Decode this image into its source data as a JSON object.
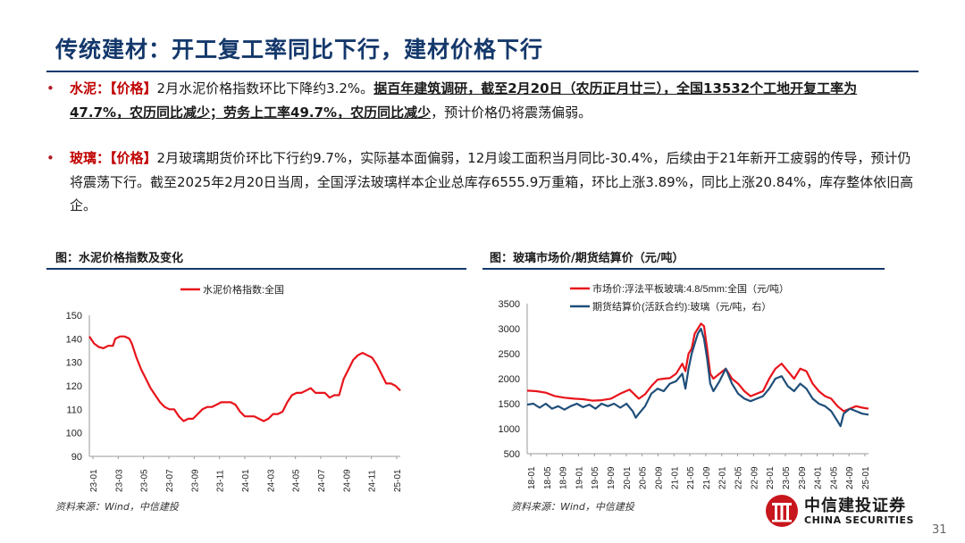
{
  "slide": {
    "title": "传统建材：开工复工率同比下行，建材价格下行",
    "page_number": "31"
  },
  "bullets": [
    {
      "label": "水泥：",
      "tag": "【价格】",
      "text1": "2月水泥价格指数环比下降约3.2%。",
      "bold_underlined": "据百年建筑调研，截至2月20日（农历正月廿三），全国13532个工地开复工率为47.7%，农历同比减少；劳务上工率49.7%，农历同比减少",
      "text2": "，预计价格仍将震荡偏弱。"
    },
    {
      "label": "玻璃：",
      "tag": "【价格】",
      "text1": "2月玻璃期货价环比下行约9.7%，实际基本面偏弱，12月竣工面积当月同比-30.4%，后续由于21年新开工疲弱的传导，预计仍将震荡下行。截至2025年2月20日当周，全国浮法玻璃样本企业总库存6555.9万重箱，环比上涨3.89%，同比上涨20.84%，库存整体依旧高企。"
    }
  ],
  "figures": {
    "left": {
      "caption": "图：水泥价格指数及变化",
      "source": "资料来源：Wind，中信建投"
    },
    "right": {
      "caption": "图：玻璃市场价/期货结算价（元/吨）",
      "source": "资料来源：Wind，中信建投"
    }
  },
  "logo": {
    "cn": "中信建投证券",
    "en": "CHINA SECURITIES"
  },
  "chart_data": [
    {
      "type": "line",
      "series": [
        {
          "name": "水泥价格指数:全国",
          "color": "#e8141b",
          "points": [
            [
              0,
              141
            ],
            [
              2,
              138
            ],
            [
              4,
              136.5
            ],
            [
              6,
              136
            ],
            [
              8,
              137
            ],
            [
              10,
              137
            ],
            [
              11,
              140
            ],
            [
              13,
              141
            ],
            [
              15,
              141
            ],
            [
              17,
              140
            ],
            [
              18,
              138
            ],
            [
              19,
              135
            ],
            [
              20,
              132
            ],
            [
              22,
              127
            ],
            [
              24,
              123
            ],
            [
              26,
              119
            ],
            [
              28,
              116
            ],
            [
              30,
              113
            ],
            [
              32,
              111
            ],
            [
              34,
              110
            ],
            [
              36,
              110
            ],
            [
              38,
              107
            ],
            [
              40,
              105
            ],
            [
              42,
              106
            ],
            [
              44,
              106
            ],
            [
              46,
              108
            ],
            [
              48,
              110
            ],
            [
              50,
              111
            ],
            [
              52,
              111
            ],
            [
              54,
              112
            ],
            [
              56,
              113
            ],
            [
              58,
              113
            ],
            [
              60,
              113
            ],
            [
              62,
              112
            ],
            [
              64,
              109
            ],
            [
              66,
              107
            ],
            [
              68,
              107
            ],
            [
              70,
              107
            ],
            [
              72,
              106
            ],
            [
              74,
              105
            ],
            [
              76,
              106
            ],
            [
              78,
              108
            ],
            [
              80,
              108
            ],
            [
              82,
              109
            ],
            [
              84,
              113
            ],
            [
              86,
              116
            ],
            [
              88,
              117
            ],
            [
              90,
              117
            ],
            [
              92,
              118
            ],
            [
              94,
              119
            ],
            [
              96,
              117
            ],
            [
              98,
              117
            ],
            [
              100,
              117
            ],
            [
              102,
              115
            ],
            [
              104,
              116
            ],
            [
              106,
              116
            ],
            [
              108,
              123
            ],
            [
              110,
              127
            ],
            [
              112,
              131
            ],
            [
              114,
              133
            ],
            [
              116,
              134
            ],
            [
              118,
              133
            ],
            [
              120,
              132
            ],
            [
              122,
              129
            ],
            [
              124,
              125
            ],
            [
              126,
              121
            ],
            [
              128,
              121
            ],
            [
              130,
              120
            ],
            [
              132,
              118
            ]
          ]
        }
      ],
      "x_ticks": [
        "23-01",
        "23-03",
        "23-05",
        "23-07",
        "23-09",
        "23-11",
        "24-01",
        "24-03",
        "24-05",
        "24-07",
        "24-09",
        "24-11",
        "25-01"
      ],
      "x_range": [
        0,
        132
      ],
      "ylim": [
        90,
        150
      ],
      "y_ticks": [
        90,
        100,
        110,
        120,
        130,
        140,
        150
      ],
      "legend": "top-center",
      "grid": false
    },
    {
      "type": "line",
      "series": [
        {
          "name": "市场价:浮法平板玻璃:4.8/5mm:全国（元/吨）",
          "color": "#e8141b",
          "points": [
            [
              0,
              1760
            ],
            [
              3,
              1750
            ],
            [
              6,
              1720
            ],
            [
              9,
              1650
            ],
            [
              12,
              1620
            ],
            [
              15,
              1600
            ],
            [
              18,
              1590
            ],
            [
              21,
              1560
            ],
            [
              24,
              1570
            ],
            [
              27,
              1600
            ],
            [
              30,
              1700
            ],
            [
              33,
              1780
            ],
            [
              34,
              1720
            ],
            [
              36,
              1600
            ],
            [
              38,
              1690
            ],
            [
              40,
              1850
            ],
            [
              42,
              1980
            ],
            [
              44,
              2000
            ],
            [
              46,
              2010
            ],
            [
              48,
              2100
            ],
            [
              50,
              2300
            ],
            [
              51,
              2150
            ],
            [
              52,
              2500
            ],
            [
              53,
              2600
            ],
            [
              54,
              2900
            ],
            [
              55,
              3000
            ],
            [
              56,
              3100
            ],
            [
              57,
              3050
            ],
            [
              58,
              2600
            ],
            [
              59,
              2100
            ],
            [
              60,
              2000
            ],
            [
              62,
              2100
            ],
            [
              64,
              2200
            ],
            [
              66,
              2000
            ],
            [
              68,
              1900
            ],
            [
              70,
              1750
            ],
            [
              72,
              1650
            ],
            [
              74,
              1700
            ],
            [
              76,
              1750
            ],
            [
              78,
              2000
            ],
            [
              80,
              2200
            ],
            [
              82,
              2300
            ],
            [
              84,
              2150
            ],
            [
              86,
              2000
            ],
            [
              88,
              2200
            ],
            [
              90,
              2150
            ],
            [
              92,
              1900
            ],
            [
              94,
              1750
            ],
            [
              96,
              1650
            ],
            [
              98,
              1600
            ],
            [
              100,
              1450
            ],
            [
              102,
              1350
            ],
            [
              104,
              1400
            ],
            [
              106,
              1450
            ],
            [
              108,
              1420
            ],
            [
              110,
              1400
            ]
          ]
        },
        {
          "name": "期货结算价(活跃合约):玻璃（元/吨，右）",
          "color": "#1f4e79",
          "points": [
            [
              0,
              1480
            ],
            [
              2,
              1500
            ],
            [
              4,
              1420
            ],
            [
              6,
              1500
            ],
            [
              8,
              1400
            ],
            [
              10,
              1450
            ],
            [
              12,
              1380
            ],
            [
              14,
              1450
            ],
            [
              16,
              1500
            ],
            [
              18,
              1430
            ],
            [
              20,
              1480
            ],
            [
              22,
              1400
            ],
            [
              24,
              1500
            ],
            [
              26,
              1450
            ],
            [
              28,
              1500
            ],
            [
              30,
              1420
            ],
            [
              32,
              1500
            ],
            [
              34,
              1350
            ],
            [
              35,
              1220
            ],
            [
              36,
              1300
            ],
            [
              38,
              1450
            ],
            [
              40,
              1700
            ],
            [
              42,
              1800
            ],
            [
              44,
              1750
            ],
            [
              46,
              1900
            ],
            [
              48,
              1950
            ],
            [
              50,
              2100
            ],
            [
              51,
              1800
            ],
            [
              52,
              2200
            ],
            [
              53,
              2500
            ],
            [
              54,
              2700
            ],
            [
              55,
              2900
            ],
            [
              56,
              3000
            ],
            [
              57,
              2800
            ],
            [
              58,
              2400
            ],
            [
              59,
              1900
            ],
            [
              60,
              1750
            ],
            [
              62,
              1950
            ],
            [
              64,
              2200
            ],
            [
              66,
              1900
            ],
            [
              68,
              1700
            ],
            [
              70,
              1600
            ],
            [
              72,
              1550
            ],
            [
              74,
              1600
            ],
            [
              76,
              1650
            ],
            [
              78,
              1800
            ],
            [
              80,
              2000
            ],
            [
              82,
              2050
            ],
            [
              84,
              1850
            ],
            [
              86,
              1750
            ],
            [
              88,
              1900
            ],
            [
              90,
              1800
            ],
            [
              92,
              1600
            ],
            [
              94,
              1500
            ],
            [
              96,
              1450
            ],
            [
              98,
              1350
            ],
            [
              100,
              1150
            ],
            [
              101,
              1050
            ],
            [
              102,
              1300
            ],
            [
              104,
              1400
            ],
            [
              106,
              1350
            ],
            [
              108,
              1300
            ],
            [
              110,
              1280
            ]
          ]
        }
      ],
      "x_ticks": [
        "18-01",
        "18-05",
        "18-09",
        "19-01",
        "19-05",
        "19-09",
        "20-01",
        "20-05",
        "20-09",
        "21-01",
        "21-05",
        "21-09",
        "22-01",
        "22-05",
        "22-09",
        "23-01",
        "23-05",
        "23-09",
        "24-01",
        "24-05",
        "24-09",
        "25-01"
      ],
      "x_range": [
        0,
        110
      ],
      "ylim": [
        500,
        3500
      ],
      "y_ticks": [
        500,
        1000,
        1500,
        2000,
        2500,
        3000,
        3500
      ],
      "legend": "top-center",
      "grid": false
    }
  ]
}
